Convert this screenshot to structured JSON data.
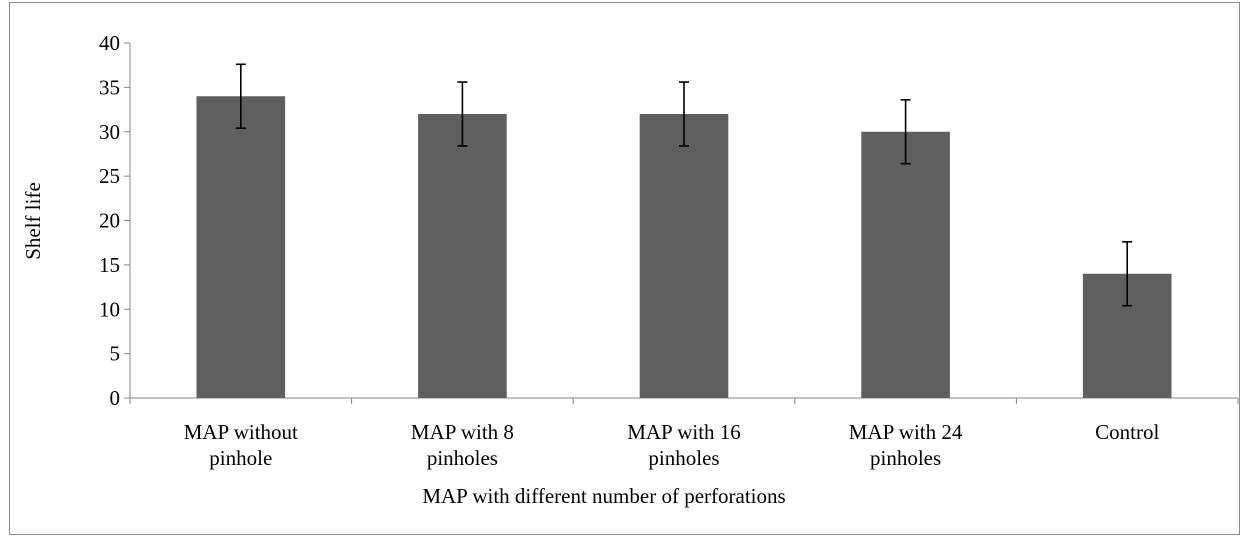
{
  "chart_data": {
    "type": "bar",
    "title": "",
    "xlabel": "MAP with different number of perforations",
    "ylabel": "Shelf life",
    "categories": [
      [
        "MAP without",
        "pinhole"
      ],
      [
        "MAP with 8",
        "pinholes"
      ],
      [
        "MAP with 16",
        "pinholes"
      ],
      [
        "MAP with 24",
        "pinholes"
      ],
      [
        "Control"
      ]
    ],
    "values": [
      34,
      32,
      32,
      30,
      14
    ],
    "error": [
      3.6,
      3.6,
      3.6,
      3.6,
      3.6
    ],
    "ylim": [
      0,
      40
    ],
    "yticks": [
      0,
      5,
      10,
      15,
      20,
      25,
      30,
      35,
      40
    ],
    "grid": false,
    "legend": "none",
    "colors": {
      "bar": "#5f5f5f",
      "axis": "#868686",
      "error": "#000000"
    }
  }
}
